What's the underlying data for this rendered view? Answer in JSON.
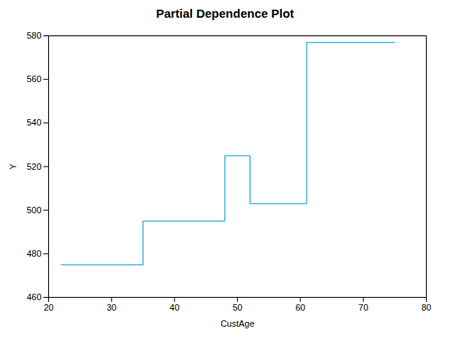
{
  "chart_data": {
    "type": "line",
    "title": "Partial Dependence Plot",
    "xlabel": "CustAge",
    "ylabel": "Y",
    "x": [
      22,
      35,
      35,
      48,
      48,
      52,
      52,
      61,
      61,
      75
    ],
    "values": [
      475,
      475,
      495,
      495,
      525,
      525,
      503,
      503,
      577,
      577
    ],
    "color": "#4db8e8",
    "xlim": [
      20,
      80
    ],
    "ylim": [
      460,
      580
    ],
    "xticks": [
      20,
      30,
      40,
      50,
      60,
      70,
      80
    ],
    "yticks": [
      460,
      480,
      500,
      520,
      540,
      560,
      580
    ]
  }
}
